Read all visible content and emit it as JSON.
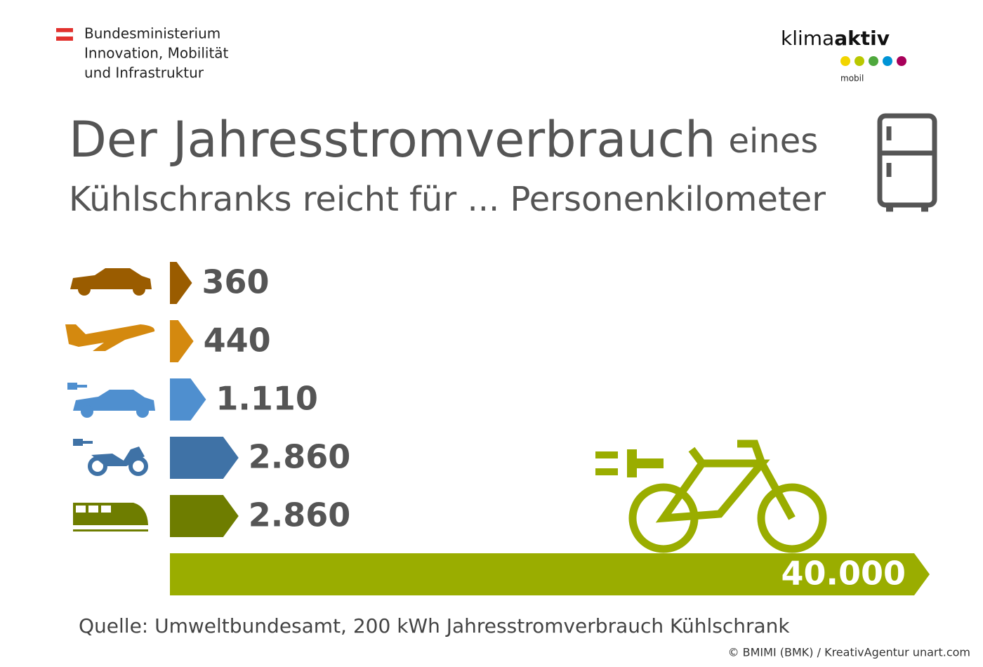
{
  "header": {
    "ministry": [
      "Bundesministerium",
      "Innovation, Mobilität",
      "und Infrastruktur"
    ],
    "logo": {
      "brand_light": "klima",
      "brand_bold": "aktiv",
      "sub": "mobil"
    }
  },
  "chart_data": {
    "type": "bar",
    "orientation": "horizontal",
    "title": "Der Jahresstromverbrauch",
    "title_suffix": "eines",
    "subtitle": "Kühlschranks reicht für ... Personenkilometer",
    "categories": [
      null,
      null,
      null,
      null,
      null,
      null
    ],
    "values": [
      360,
      440,
      1110,
      2860,
      2860,
      40000
    ],
    "value_labels": [
      "360",
      "440",
      "1.110",
      "2.860",
      "2.860",
      "40.000"
    ],
    "colors": [
      "#9a5c00",
      "#d4890f",
      "#4f8fcf",
      "#3f72a6",
      "#6e7d00",
      "#9aad00"
    ]
  },
  "footer": {
    "source": "Quelle: Umweltbundesamt, 200 kWh Jahresstromverbrauch Kühlschrank",
    "copyright": "© BMIMI (BMK) / KreativAgentur unart.com"
  }
}
